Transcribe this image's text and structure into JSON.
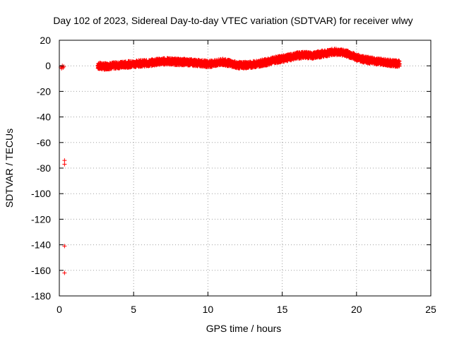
{
  "chart_data": {
    "type": "scatter",
    "title": "Day 102 of 2023, Sidereal Day-to-day VTEC variation (SDTVAR) for receiver wlwy",
    "xlabel": "GPS time / hours",
    "ylabel": "SDTVAR / TECUs",
    "xlim": [
      0,
      25
    ],
    "ylim": [
      -180,
      20
    ],
    "xticks": [
      0,
      5,
      10,
      15,
      20,
      25
    ],
    "yticks": [
      20,
      0,
      -20,
      -40,
      -60,
      -80,
      -100,
      -120,
      -140,
      -160,
      -180
    ],
    "grid": true,
    "marker": "+",
    "color": "#ff0000",
    "series": [
      {
        "name": "SDTVAR",
        "trend": [
          [
            2.6,
            0.0
          ],
          [
            3.0,
            -0.5
          ],
          [
            3.5,
            0.0
          ],
          [
            4.0,
            0.5
          ],
          [
            4.5,
            1.0
          ],
          [
            5.0,
            1.5
          ],
          [
            5.5,
            2.0
          ],
          [
            6.0,
            2.0
          ],
          [
            6.5,
            3.0
          ],
          [
            7.0,
            3.5
          ],
          [
            7.5,
            3.5
          ],
          [
            8.0,
            3.0
          ],
          [
            8.5,
            3.0
          ],
          [
            9.0,
            2.5
          ],
          [
            9.5,
            2.0
          ],
          [
            10.0,
            1.5
          ],
          [
            10.5,
            2.0
          ],
          [
            11.0,
            3.0
          ],
          [
            11.5,
            2.0
          ],
          [
            12.0,
            0.5
          ],
          [
            12.5,
            0.5
          ],
          [
            13.0,
            1.0
          ],
          [
            13.5,
            2.0
          ],
          [
            14.0,
            3.0
          ],
          [
            14.5,
            4.5
          ],
          [
            15.0,
            5.5
          ],
          [
            15.5,
            6.5
          ],
          [
            16.0,
            8.0
          ],
          [
            16.5,
            8.5
          ],
          [
            17.0,
            8.0
          ],
          [
            17.5,
            9.0
          ],
          [
            18.0,
            10.0
          ],
          [
            18.5,
            11.0
          ],
          [
            19.0,
            10.5
          ],
          [
            19.5,
            9.0
          ],
          [
            20.0,
            6.5
          ],
          [
            20.5,
            5.0
          ],
          [
            21.0,
            4.0
          ],
          [
            21.5,
            3.5
          ],
          [
            22.0,
            2.5
          ],
          [
            22.5,
            2.0
          ],
          [
            22.9,
            1.5
          ]
        ],
        "outliers": [
          [
            0.1,
            -1.0
          ],
          [
            0.15,
            -2.0
          ],
          [
            0.2,
            0.0
          ],
          [
            0.25,
            -1.5
          ],
          [
            0.3,
            -0.5
          ],
          [
            0.35,
            -74.0
          ],
          [
            0.35,
            -77.0
          ],
          [
            0.35,
            -141.0
          ],
          [
            0.35,
            -162.0
          ]
        ]
      }
    ]
  }
}
